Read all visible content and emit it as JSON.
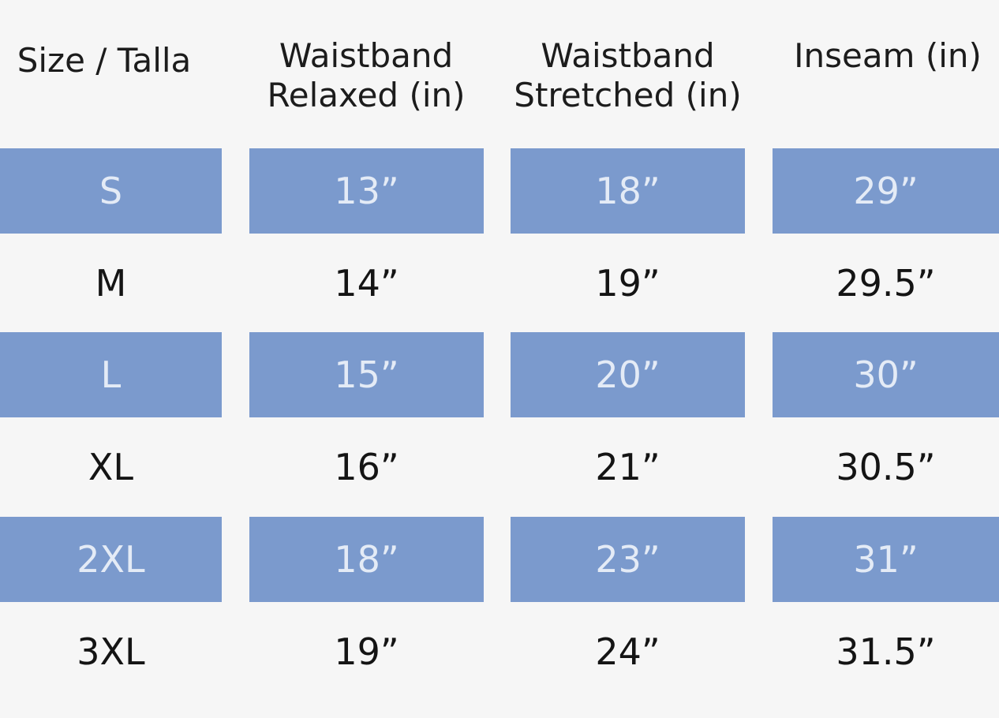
{
  "headers": [
    {
      "lines": [
        "Size / Talla"
      ]
    },
    {
      "lines": [
        "Waistband",
        "Relaxed (in)"
      ]
    },
    {
      "lines": [
        "Waistband",
        "Stretched (in)"
      ]
    },
    {
      "lines": [
        "Inseam (in)"
      ]
    }
  ],
  "rows": [
    {
      "size": "S",
      "relaxed": "13”",
      "stretched": "18”",
      "inseam": "29”"
    },
    {
      "size": "M",
      "relaxed": "14”",
      "stretched": "19”",
      "inseam": "29.5”"
    },
    {
      "size": "L",
      "relaxed": "15”",
      "stretched": "20”",
      "inseam": "30”"
    },
    {
      "size": "XL",
      "relaxed": "16”",
      "stretched": "21”",
      "inseam": "30.5”"
    },
    {
      "size": "2XL",
      "relaxed": "18”",
      "stretched": "23”",
      "inseam": "31”"
    },
    {
      "size": "3XL",
      "relaxed": "19”",
      "stretched": "24”",
      "inseam": "31.5”"
    }
  ],
  "colors": {
    "band_fill": "#7b9acd",
    "band_text": "#e4ebf6",
    "background": "#f6f6f6"
  }
}
